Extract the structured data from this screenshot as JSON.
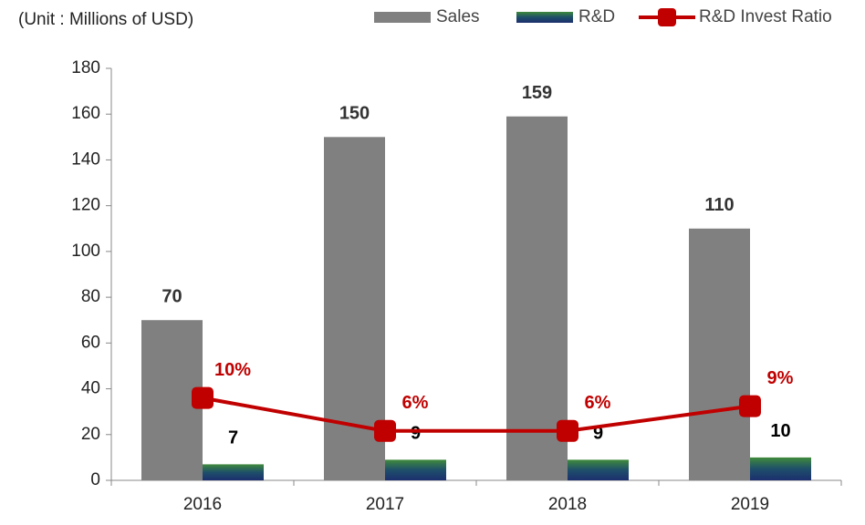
{
  "chart_data": {
    "type": "bar",
    "subtitle": "(Unit : Millions of USD)",
    "categories": [
      "2016",
      "2017",
      "2018",
      "2019"
    ],
    "series": [
      {
        "name": "Sales",
        "type": "bar",
        "color": "#808080",
        "values": [
          70,
          150,
          159,
          110
        ]
      },
      {
        "name": "R&D",
        "type": "bar",
        "color": "#1f3d6e",
        "values": [
          7,
          9,
          9,
          10
        ]
      },
      {
        "name": "R&D Invest Ratio",
        "type": "line",
        "axis": "y2",
        "color": "#c00000",
        "values": [
          10,
          6,
          6,
          9
        ],
        "value_labels": [
          "10%",
          "6%",
          "6%",
          "9%"
        ]
      }
    ],
    "ylim": [
      0,
      180
    ],
    "yticks": [
      0,
      20,
      40,
      60,
      80,
      100,
      120,
      140,
      160,
      180
    ],
    "y2lim": [
      0,
      50
    ],
    "grid": false,
    "legend": "top-right"
  }
}
